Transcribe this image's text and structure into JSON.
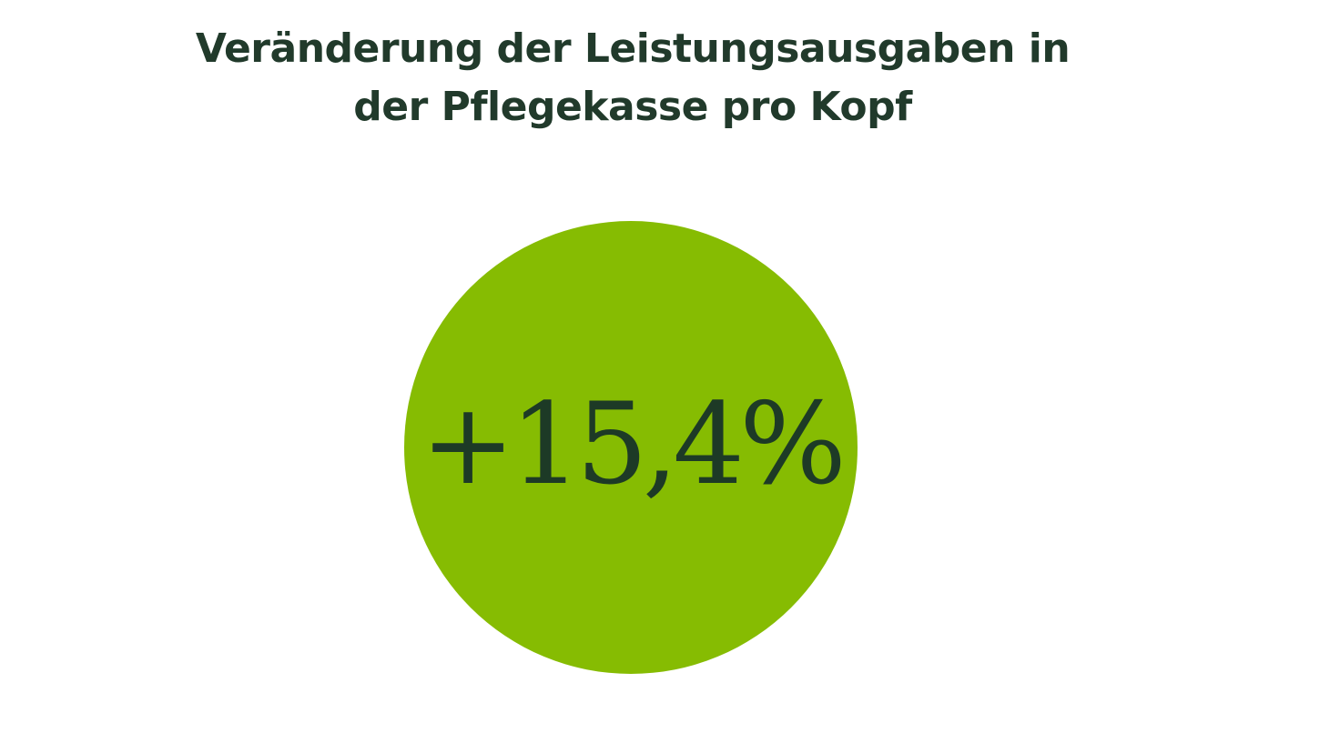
{
  "chart_data": {
    "type": "other",
    "title": "Veränderung der Leistungsausgaben in der Pflegekasse pro Kopf",
    "value": 15.4,
    "value_label": "+15,4%",
    "unit": "%"
  },
  "colors": {
    "circle": "#86bc02",
    "text": "#1d3a26",
    "title": "#213a2b",
    "background": "#ffffff"
  }
}
